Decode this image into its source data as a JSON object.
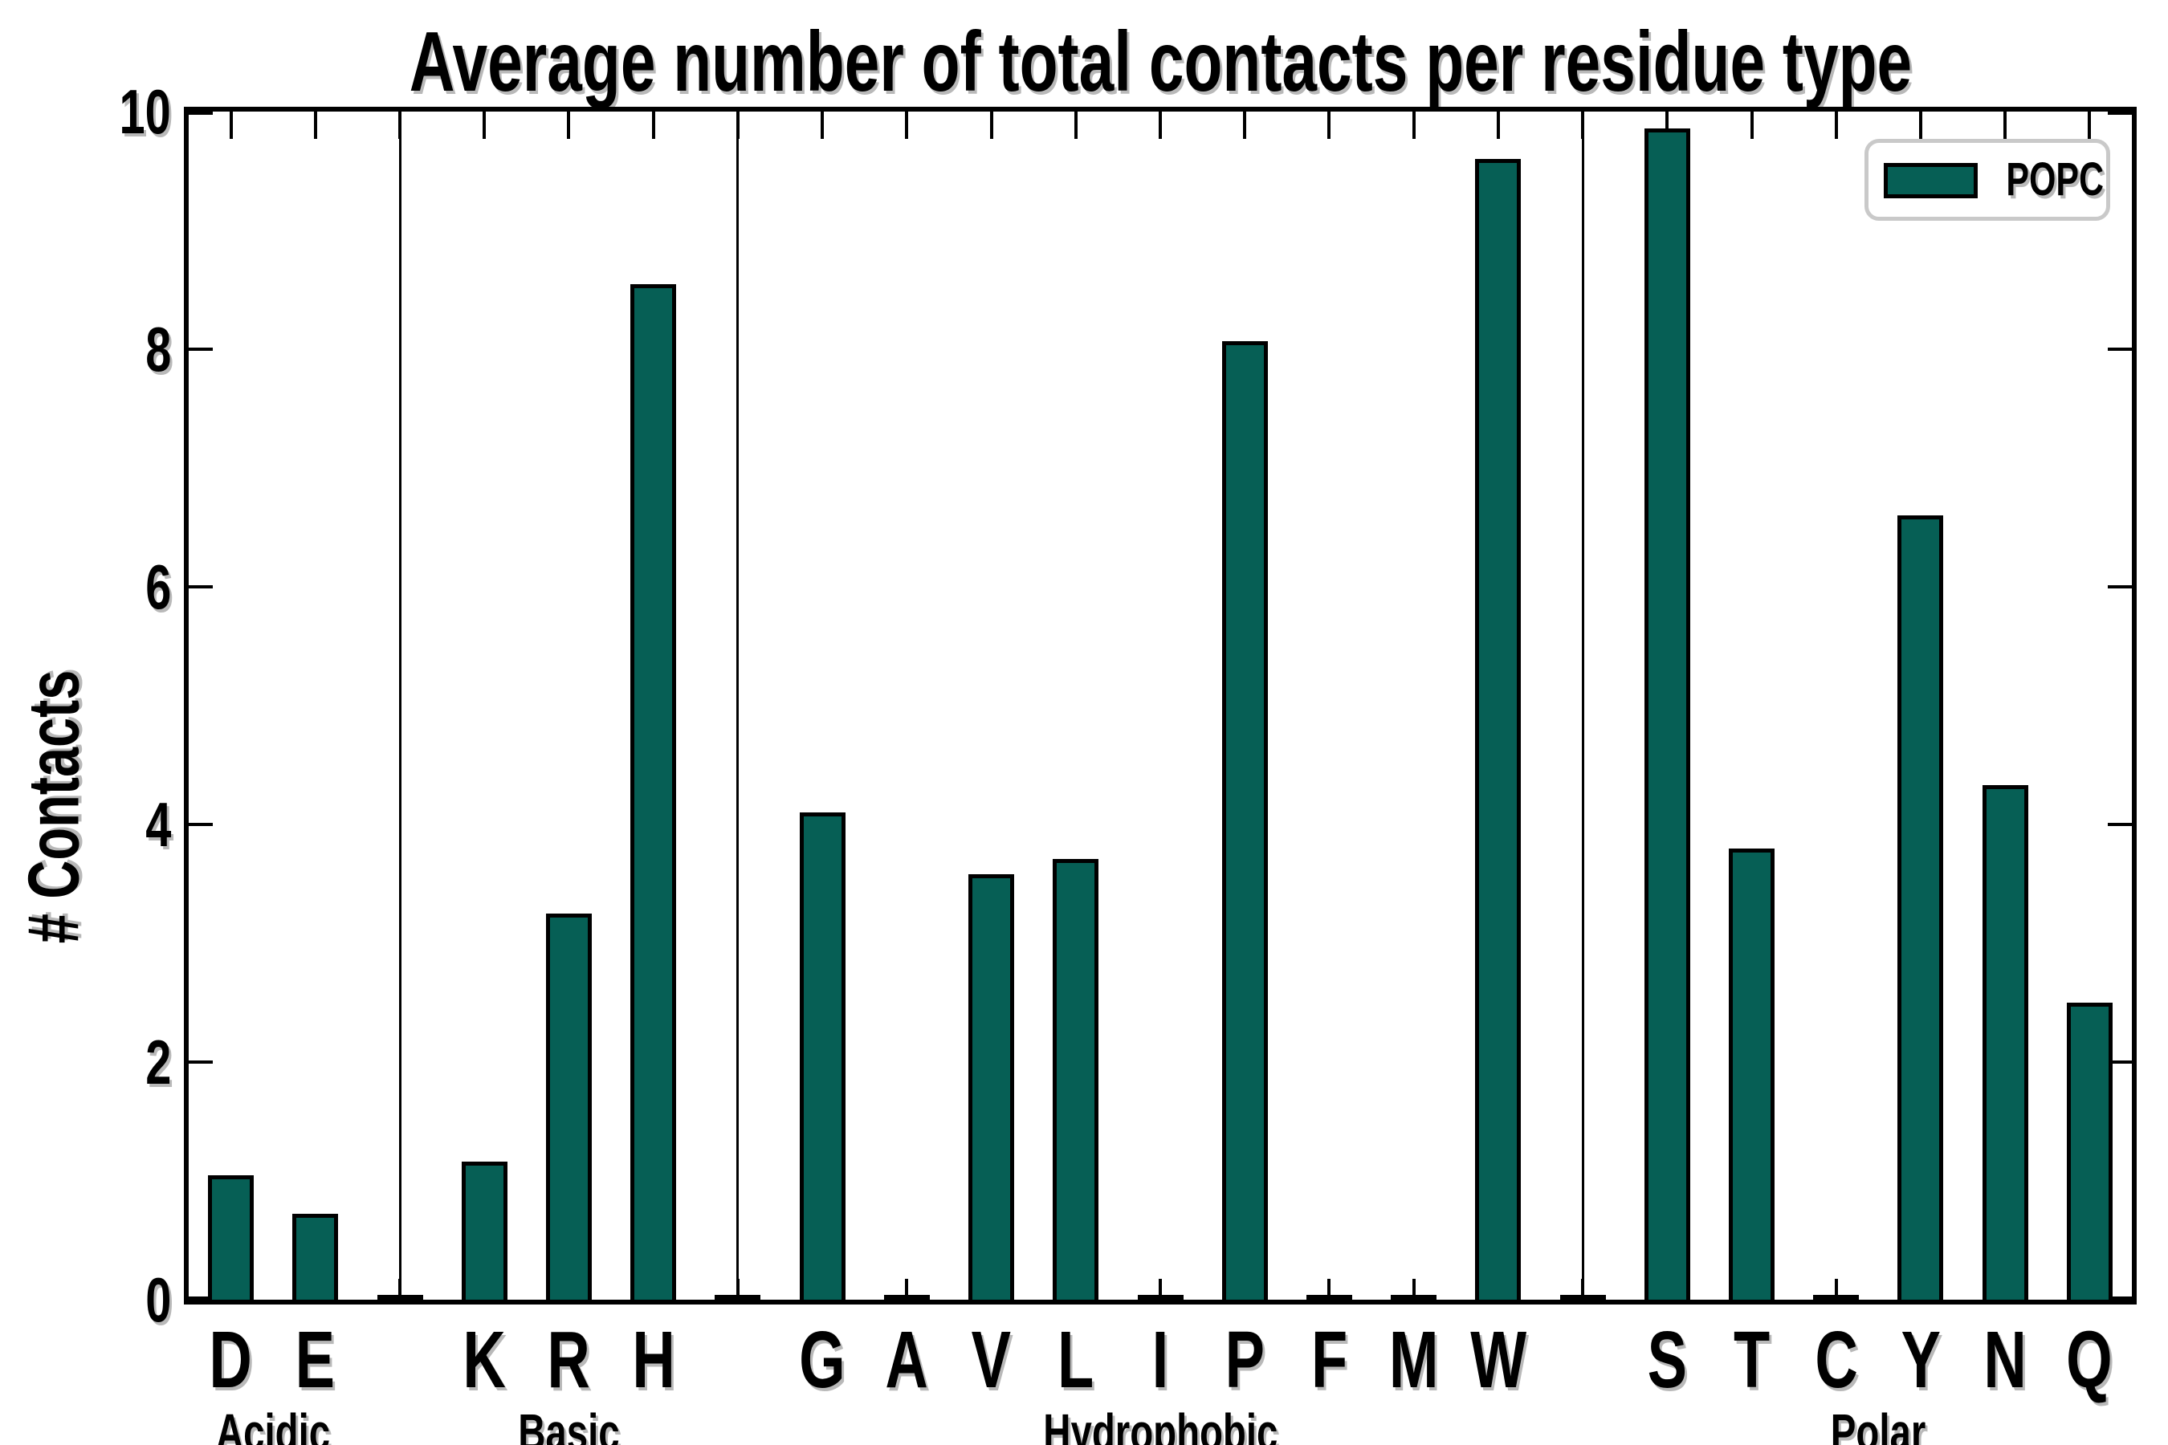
{
  "title": "Average number of total contacts per residue type",
  "ylabel": "# Contacts",
  "legend": {
    "label": "POPC"
  },
  "colors": {
    "bar_fill": "#065f55",
    "bar_edge": "#000000",
    "axis": "#000000",
    "legend_border": "#c9c9c9",
    "background": "#ffffff",
    "text_shadow": "#b9b9b9"
  },
  "y_axis": {
    "min": 0,
    "max": 10,
    "ticks": [
      0,
      2,
      4,
      6,
      8,
      10
    ]
  },
  "groups": [
    {
      "label": "Acidic",
      "center_slot": 0.5
    },
    {
      "label": "Basic",
      "center_slot": 4
    },
    {
      "label": "Hydrophobic",
      "center_slot": 11
    },
    {
      "label": "Polar",
      "center_slot": 19.5
    }
  ],
  "separator_slots": [
    2,
    6,
    16
  ],
  "slots": [
    {
      "label": "D",
      "value": 1.05,
      "gap": false
    },
    {
      "label": "E",
      "value": 0.72,
      "gap": false
    },
    {
      "label": "",
      "value": 0.03,
      "gap": true
    },
    {
      "label": "K",
      "value": 1.16,
      "gap": false
    },
    {
      "label": "R",
      "value": 3.25,
      "gap": false
    },
    {
      "label": "H",
      "value": 8.55,
      "gap": false
    },
    {
      "label": "",
      "value": 0.03,
      "gap": true
    },
    {
      "label": "G",
      "value": 4.1,
      "gap": false
    },
    {
      "label": "A",
      "value": 0.03,
      "gap": false
    },
    {
      "label": "V",
      "value": 3.58,
      "gap": false
    },
    {
      "label": "L",
      "value": 3.71,
      "gap": false
    },
    {
      "label": "I",
      "value": 0.03,
      "gap": false
    },
    {
      "label": "P",
      "value": 8.07,
      "gap": false
    },
    {
      "label": "F",
      "value": 0.03,
      "gap": false
    },
    {
      "label": "M",
      "value": 0.03,
      "gap": false
    },
    {
      "label": "W",
      "value": 9.6,
      "gap": false
    },
    {
      "label": "",
      "value": 0.03,
      "gap": true
    },
    {
      "label": "S",
      "value": 9.86,
      "gap": false
    },
    {
      "label": "T",
      "value": 3.8,
      "gap": false
    },
    {
      "label": "C",
      "value": 0.03,
      "gap": false
    },
    {
      "label": "Y",
      "value": 6.6,
      "gap": false
    },
    {
      "label": "N",
      "value": 4.33,
      "gap": false
    },
    {
      "label": "Q",
      "value": 2.5,
      "gap": false
    }
  ],
  "chart_data": {
    "type": "bar",
    "title": "Average number of total contacts per residue type",
    "xlabel": "",
    "ylabel": "# Contacts",
    "ylim": [
      0,
      10
    ],
    "grid": false,
    "legend_position": "upper right",
    "series": [
      {
        "name": "POPC",
        "color": "#065f55"
      }
    ],
    "categories": [
      "D",
      "E",
      "K",
      "R",
      "H",
      "G",
      "A",
      "V",
      "L",
      "I",
      "P",
      "F",
      "M",
      "W",
      "S",
      "T",
      "C",
      "Y",
      "N",
      "Q"
    ],
    "values": [
      1.05,
      0.72,
      1.16,
      3.25,
      8.55,
      4.1,
      0.03,
      3.58,
      3.71,
      0.03,
      8.07,
      0.03,
      0.03,
      9.6,
      9.86,
      3.8,
      0.03,
      6.6,
      4.33,
      2.5
    ],
    "category_groups": {
      "Acidic": [
        "D",
        "E"
      ],
      "Basic": [
        "K",
        "R",
        "H"
      ],
      "Hydrophobic": [
        "G",
        "A",
        "V",
        "L",
        "I",
        "P",
        "F",
        "M",
        "W"
      ],
      "Polar": [
        "S",
        "T",
        "C",
        "Y",
        "N",
        "Q"
      ]
    }
  }
}
